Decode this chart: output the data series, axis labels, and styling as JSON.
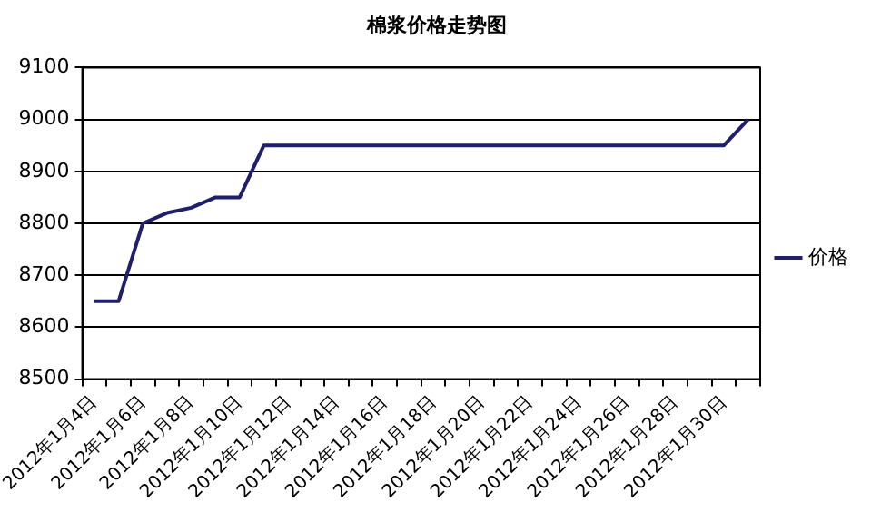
{
  "chart_data": {
    "type": "line",
    "title": "棉浆价格走势图",
    "categories": [
      "2012年1月4日",
      null,
      "2012年1月6日",
      null,
      "2012年1月8日",
      null,
      "2012年1月10日",
      null,
      "2012年1月12日",
      null,
      "2012年1月14日",
      null,
      "2012年1月16日",
      null,
      "2012年1月18日",
      null,
      "2012年1月20日",
      null,
      "2012年1月22日",
      null,
      "2012年1月24日",
      null,
      "2012年1月26日",
      null,
      "2012年1月28日",
      null,
      "2012年1月30日",
      null
    ],
    "series": [
      {
        "name": "价格",
        "color": "#1f1f6b",
        "values": [
          8650,
          8650,
          8800,
          8820,
          8830,
          8850,
          8850,
          8950,
          8950,
          8950,
          8950,
          8950,
          8950,
          8950,
          8950,
          8950,
          8950,
          8950,
          8950,
          8950,
          8950,
          8950,
          8950,
          8950,
          8950,
          8950,
          8950,
          9000
        ]
      }
    ],
    "ylim": [
      8500,
      9100
    ],
    "yticks": [
      8500,
      8600,
      8700,
      8800,
      8900,
      9000,
      9100
    ],
    "grid": "y",
    "legend": "right",
    "marker": "none",
    "line_style": "solid"
  }
}
